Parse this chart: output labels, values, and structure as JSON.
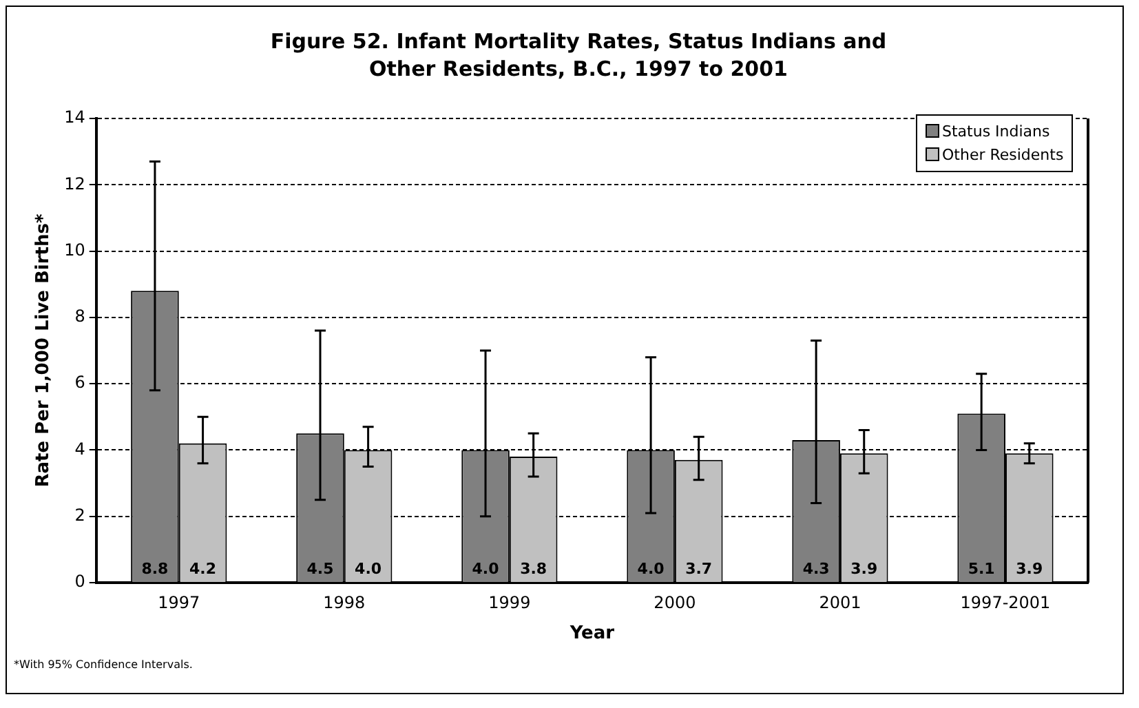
{
  "chart_data": {
    "type": "bar",
    "title": "Figure 52.  Infant Mortality Rates, Status Indians and Other Residents, B.C., 1997 to 2001",
    "xlabel": "Year",
    "ylabel": "Rate Per 1,000 Live Births*",
    "categories": [
      "1997",
      "1998",
      "1999",
      "2000",
      "2001",
      "1997-2001"
    ],
    "series": [
      {
        "name": "Status Indians",
        "color": "#808080",
        "values": [
          8.8,
          4.5,
          4.0,
          4.0,
          4.3,
          5.1
        ],
        "value_labels": [
          "8.8",
          "4.5",
          "4.0",
          "4.0",
          "4.3",
          "5.1"
        ],
        "errors": [
          [
            5.8,
            12.7
          ],
          [
            2.5,
            7.6
          ],
          [
            2.0,
            7.0
          ],
          [
            2.1,
            6.8
          ],
          [
            2.4,
            7.3
          ],
          [
            4.0,
            6.3
          ]
        ]
      },
      {
        "name": "Other Residents",
        "color": "#c0c0c0",
        "values": [
          4.2,
          4.0,
          3.8,
          3.7,
          3.9,
          3.9
        ],
        "value_labels": [
          "4.2",
          "4.0",
          "3.8",
          "3.7",
          "3.9",
          "3.9"
        ],
        "errors": [
          [
            3.6,
            5.0
          ],
          [
            3.5,
            4.7
          ],
          [
            3.2,
            4.5
          ],
          [
            3.1,
            4.4
          ],
          [
            3.3,
            4.6
          ],
          [
            3.6,
            4.2
          ]
        ]
      }
    ],
    "ylim": [
      0,
      14
    ],
    "yticks": [
      0,
      2,
      4,
      6,
      8,
      10,
      12,
      14
    ],
    "grid": "y",
    "legend": "top right",
    "annotations": [
      "*With 95% Confidence Intervals."
    ]
  }
}
